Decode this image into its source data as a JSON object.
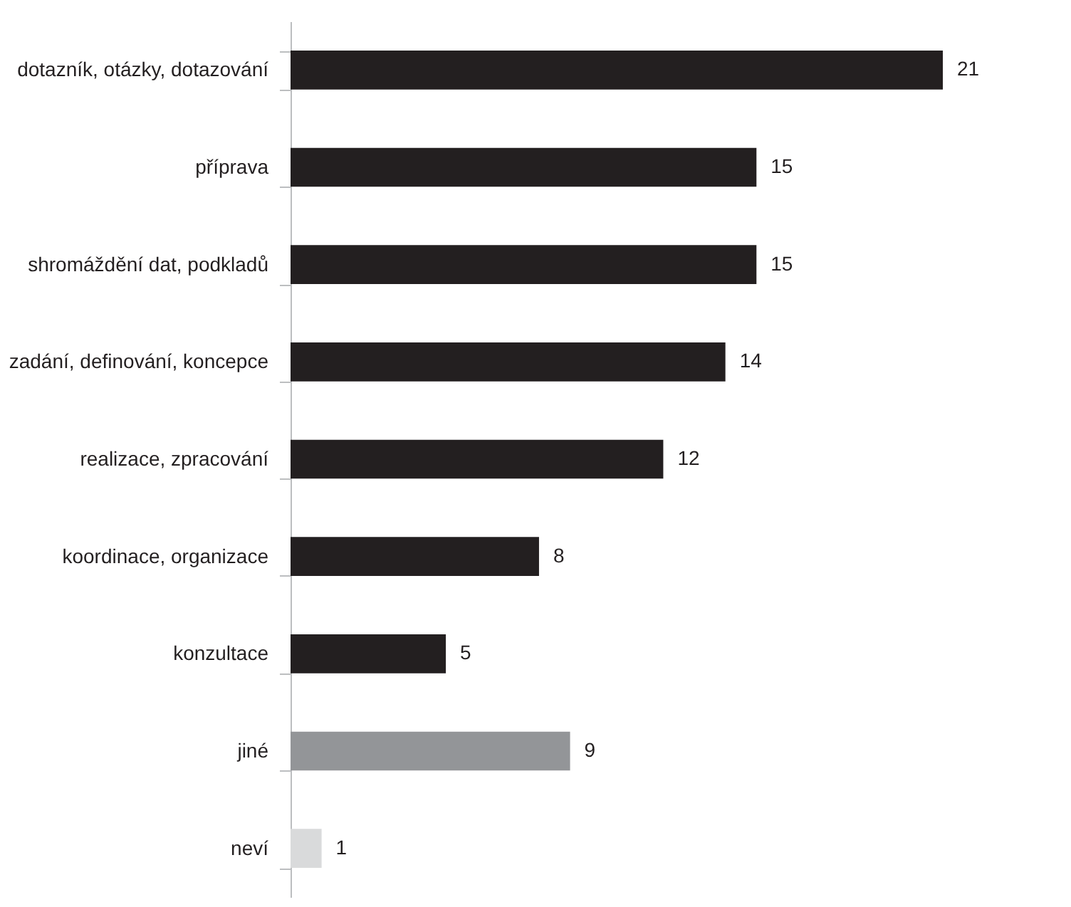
{
  "chart_data": {
    "type": "bar",
    "orientation": "horizontal",
    "categories": [
      "dotazník, otázky, dotazování",
      "příprava",
      "shromáždění dat, podkladů",
      "zadání, definování, koncepce",
      "realizace, zpracování",
      "koordinace, organizace",
      "konzultace",
      "jiné",
      "neví"
    ],
    "values": [
      21,
      15,
      15,
      14,
      12,
      8,
      5,
      9,
      1
    ],
    "colors": [
      "#231f20",
      "#231f20",
      "#231f20",
      "#231f20",
      "#231f20",
      "#231f20",
      "#231f20",
      "#939598",
      "#d9dadb"
    ],
    "data_labels": true,
    "grid": false,
    "tick_labels": "y"
  }
}
